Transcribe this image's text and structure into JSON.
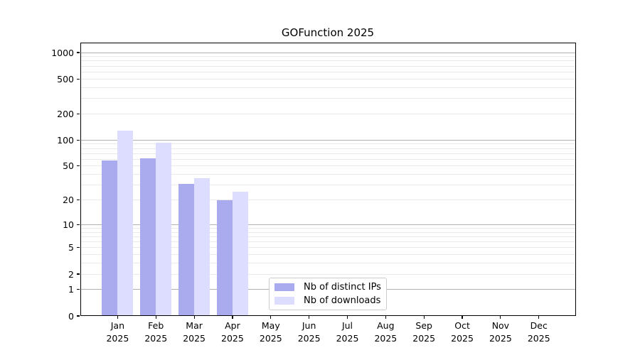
{
  "figure": {
    "background": "#ffffff"
  },
  "chart_data": {
    "type": "bar",
    "title": "GOFunction 2025",
    "categories": [
      "Jan 2025",
      "Feb 2025",
      "Mar 2025",
      "Apr 2025",
      "May 2025",
      "Jun 2025",
      "Jul 2025",
      "Aug 2025",
      "Sep 2025",
      "Oct 2025",
      "Nov 2025",
      "Dec 2025"
    ],
    "series": [
      {
        "name": "Nb of distinct IPs",
        "color": "#aaaaee",
        "values": [
          58,
          61,
          31,
          20,
          null,
          null,
          null,
          null,
          null,
          null,
          null,
          null
        ]
      },
      {
        "name": "Nb of downloads",
        "color": "#ddddff",
        "values": [
          127,
          93,
          36,
          25,
          null,
          null,
          null,
          null,
          null,
          null,
          null,
          null
        ]
      }
    ],
    "xlabel": "",
    "ylabel": "",
    "y_scale": "log10(1+x)",
    "ylim": [
      0,
      1300
    ],
    "y_ticks": [
      0,
      1,
      2,
      5,
      10,
      20,
      50,
      100,
      200,
      500,
      1000
    ],
    "y_major_gridlines": [
      1,
      10,
      100,
      1000
    ],
    "y_minor_gridlines": [
      2,
      3,
      4,
      5,
      6,
      7,
      8,
      9,
      20,
      30,
      40,
      50,
      60,
      70,
      80,
      90,
      200,
      300,
      400,
      500,
      600,
      700,
      800,
      900
    ],
    "grid": true,
    "legend_position": "inside bottom, left of center",
    "colors": {
      "major_grid": "#b0b0b0",
      "minor_grid": "#eaeaea",
      "axis": "#000000",
      "text": "#000000"
    }
  },
  "legend": {
    "items": [
      {
        "label": "Nb of distinct IPs",
        "color": "#aaaaee"
      },
      {
        "label": "Nb of downloads",
        "color": "#ddddff"
      }
    ]
  }
}
